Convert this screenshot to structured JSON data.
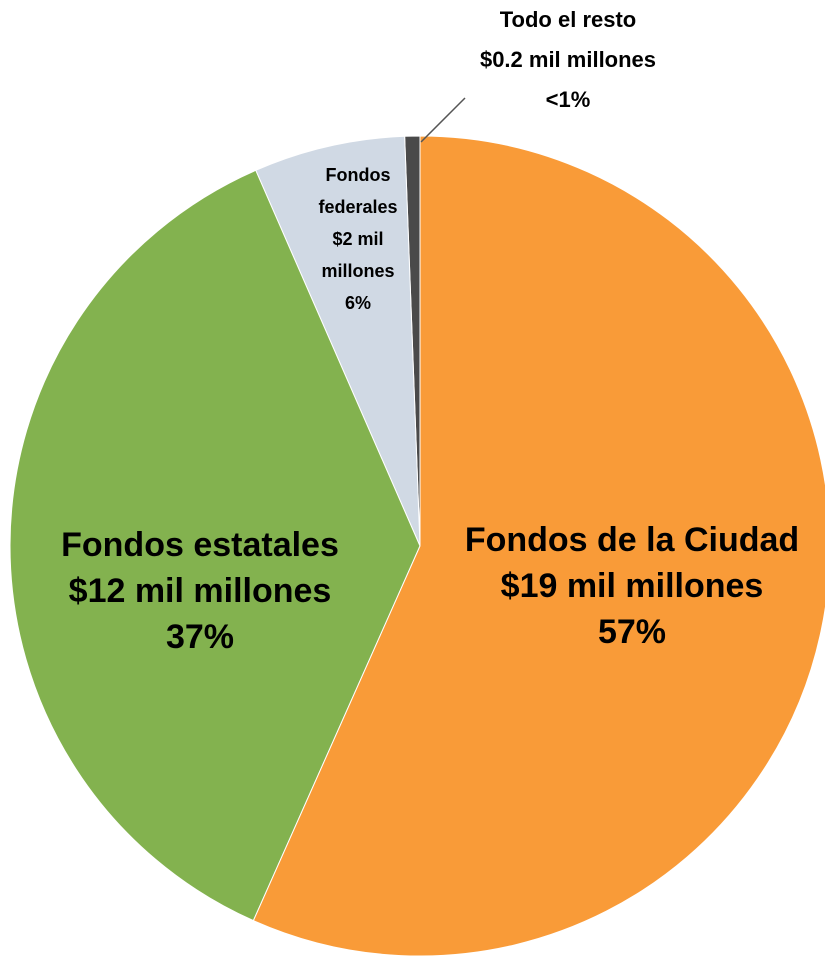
{
  "chart_data": {
    "type": "pie",
    "categories": [
      "Fondos de la Ciudad",
      "Fondos estatales",
      "Fondos federales",
      "Todo el resto"
    ],
    "values": [
      57,
      37,
      6,
      0.6
    ],
    "value_labels": [
      "57%",
      "37%",
      "6%",
      "<1%"
    ],
    "amount_labels": [
      "$19 mil millones",
      "$12 mil millones",
      "$2 mil millones",
      "$0.2 mil millones"
    ],
    "colors": [
      "#f99b38",
      "#83b24f",
      "#d0d9e4",
      "#4a4a4a"
    ]
  }
}
